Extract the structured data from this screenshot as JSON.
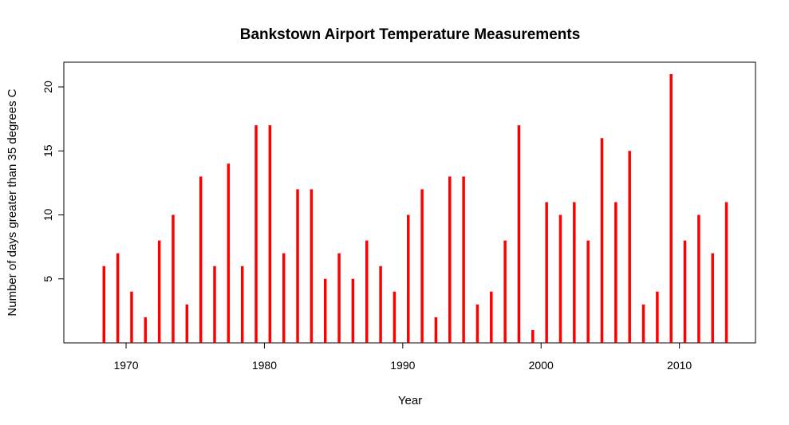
{
  "chart_data": {
    "type": "bar",
    "title": "Bankstown Airport Temperature Measurements",
    "xlabel": "Year",
    "ylabel": "Number of days greater than  35  degrees C",
    "xlim": [
      1965.5,
      1971.7
    ],
    "xticks": [
      1970,
      1980,
      1990,
      2000,
      2010
    ],
    "yticks": [
      5,
      10,
      15,
      20
    ],
    "ylim": [
      0,
      22
    ],
    "bar_color": "#ff0000",
    "style": "vertical lines (histogram type h)",
    "x": [
      1968,
      1969,
      1970,
      1971,
      1972,
      1973,
      1974,
      1975,
      1976,
      1977,
      1978,
      1979,
      1980,
      1981,
      1982,
      1983,
      1984,
      1985,
      1986,
      1987,
      1988,
      1989,
      1990,
      1991,
      1992,
      1993,
      1994,
      1995,
      1996,
      1997,
      1998,
      1999,
      2000,
      2001,
      2002,
      2003,
      2004,
      2005,
      2006,
      2007,
      2008,
      2009,
      2010,
      2011,
      2012,
      2013
    ],
    "values": [
      6,
      7,
      4,
      2,
      8,
      10,
      3,
      13,
      6,
      14,
      6,
      17,
      17,
      7,
      12,
      12,
      5,
      7,
      5,
      8,
      6,
      4,
      10,
      12,
      2,
      13,
      13,
      3,
      4,
      8,
      17,
      1,
      11,
      10,
      11,
      8,
      16,
      11,
      15,
      3,
      4,
      21,
      8,
      10,
      7,
      11
    ]
  }
}
